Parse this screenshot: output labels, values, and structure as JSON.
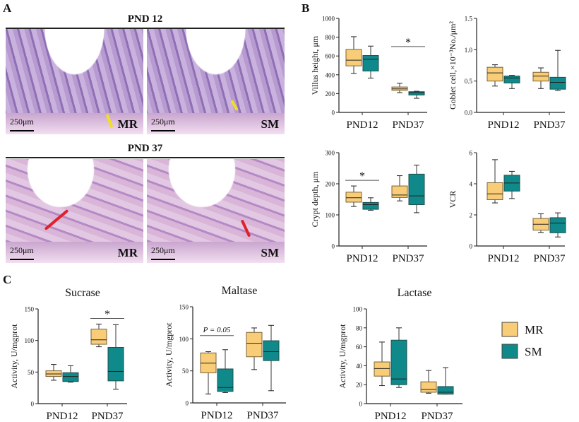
{
  "panels": {
    "a": "A",
    "b": "B",
    "c": "C"
  },
  "histology": {
    "row1_title": "PND 12",
    "row2_title": "PND 37",
    "scale": "250μm",
    "images": [
      {
        "group": "MR",
        "marker_color": "#f2e020"
      },
      {
        "group": "SM",
        "marker_color": "#f2e020"
      },
      {
        "group": "MR",
        "marker_color": "#e0202a"
      },
      {
        "group": "SM",
        "marker_color": "#e0202a"
      }
    ]
  },
  "legend": [
    {
      "name": "MR",
      "color": "#F9CD78"
    },
    {
      "name": "SM",
      "color": "#10898A"
    }
  ],
  "chart_data": [
    {
      "type": "box",
      "title": "",
      "ylabel": "Villus height, μm",
      "ylim": [
        0,
        1000
      ],
      "yticks": [
        "0",
        "200",
        "400",
        "600",
        "800",
        "1000"
      ],
      "categories": [
        "PND12",
        "PND37"
      ],
      "series": [
        {
          "name": "MR",
          "values": [
            [
              415,
              495,
              555,
              670,
              805
            ],
            [
              210,
              235,
              250,
              270,
              310
            ]
          ]
        },
        {
          "name": "SM",
          "values": [
            [
              365,
              440,
              565,
              605,
              705
            ],
            [
              150,
              185,
              210,
              220,
              225
            ]
          ]
        }
      ],
      "annotation": {
        "category": "PND37",
        "text": "*"
      }
    },
    {
      "type": "box",
      "title": "",
      "ylabel": "Goblet cell,×10⁻³No./μm²",
      "ylim": [
        0,
        1.5
      ],
      "yticks": [
        "0.0",
        "0.5",
        "1.0",
        "1.5"
      ],
      "categories": [
        "PND12",
        "PND37"
      ],
      "series": [
        {
          "name": "MR",
          "values": [
            [
              0.42,
              0.5,
              0.63,
              0.72,
              0.76
            ],
            [
              0.38,
              0.5,
              0.58,
              0.64,
              0.71
            ]
          ]
        },
        {
          "name": "SM",
          "values": [
            [
              0.38,
              0.47,
              0.55,
              0.58,
              0.59
            ],
            [
              0.35,
              0.37,
              0.48,
              0.56,
              0.99
            ]
          ]
        }
      ]
    },
    {
      "type": "box",
      "title": "",
      "ylabel": "Crypt depth, μm",
      "ylim": [
        0,
        300
      ],
      "yticks": [
        "0",
        "100",
        "200",
        "300"
      ],
      "categories": [
        "PND12",
        "PND37"
      ],
      "series": [
        {
          "name": "MR",
          "values": [
            [
              127,
              141,
              155,
              173,
              193
            ],
            [
              145,
              156,
              164,
              193,
              226
            ]
          ]
        },
        {
          "name": "SM",
          "values": [
            [
              115,
              118,
              133,
              140,
              155
            ],
            [
              107,
              133,
              161,
              231,
              260
            ]
          ]
        }
      ],
      "annotation": {
        "category": "PND12",
        "text": "*"
      }
    },
    {
      "type": "box",
      "title": "",
      "ylabel": "VCR",
      "ylim": [
        0,
        6
      ],
      "yticks": [
        "0",
        "2",
        "4",
        "6"
      ],
      "categories": [
        "PND12",
        "PND37"
      ],
      "series": [
        {
          "name": "MR",
          "values": [
            [
              2.77,
              2.98,
              3.35,
              4.07,
              5.55
            ],
            [
              0.87,
              1.02,
              1.4,
              1.77,
              2.07
            ]
          ]
        },
        {
          "name": "SM",
          "values": [
            [
              3.05,
              3.53,
              4.05,
              4.55,
              4.8
            ],
            [
              0.58,
              0.85,
              1.47,
              1.82,
              2.13
            ]
          ]
        }
      ]
    },
    {
      "type": "box",
      "title": "Sucrase",
      "ylabel": "Activity, U/mgprot",
      "ylim": [
        0,
        150
      ],
      "yticks": [
        "0",
        "50",
        "100",
        "150"
      ],
      "categories": [
        "PND12",
        "PND37"
      ],
      "series": [
        {
          "name": "MR",
          "values": [
            [
              37,
              43,
              47,
              52,
              62
            ],
            [
              90,
              94,
              101,
              118,
              126
            ]
          ]
        },
        {
          "name": "SM",
          "values": [
            [
              34,
              35,
              43,
              49,
              60
            ],
            [
              23,
              36,
              51,
              89,
              125
            ]
          ]
        }
      ],
      "annotation": {
        "category": "PND37",
        "text": "*"
      }
    },
    {
      "type": "box",
      "title": "Maltase",
      "ylabel": "Activity, U/mgprot",
      "ylim": [
        0,
        150
      ],
      "yticks": [
        "0",
        "50",
        "100",
        "150"
      ],
      "categories": [
        "PND12",
        "PND37"
      ],
      "series": [
        {
          "name": "MR",
          "values": [
            [
              14,
              47,
              62,
              78,
              80
            ],
            [
              52,
              72,
              93,
              110,
              117
            ]
          ]
        },
        {
          "name": "SM",
          "values": [
            [
              16,
              18,
              24,
              53,
              83
            ],
            [
              19,
              66,
              80,
              97,
              121
            ]
          ]
        }
      ],
      "annotation": {
        "category": "PND12",
        "text": "P = 0.05"
      }
    },
    {
      "type": "box",
      "title": "Lactase",
      "ylabel": "Activity, U/mgprot",
      "ylim": [
        0,
        100
      ],
      "yticks": [
        "0",
        "20",
        "40",
        "60",
        "80",
        "100"
      ],
      "categories": [
        "PND12",
        "PND37"
      ],
      "series": [
        {
          "name": "MR",
          "values": [
            [
              19,
              29,
              37,
              44,
              65
            ],
            [
              11,
              12,
              15,
              23,
              35
            ]
          ]
        },
        {
          "name": "SM",
          "values": [
            [
              17,
              20,
              26,
              67,
              80
            ],
            [
              10,
              10,
              12,
              18,
              38
            ]
          ]
        }
      ]
    }
  ]
}
